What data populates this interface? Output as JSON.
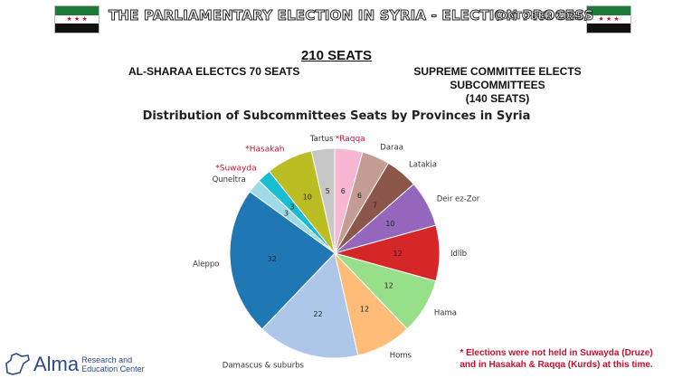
{
  "header": {
    "title": "THE PARLIAMENTARY ELECTION IN SYRIA - ELECTION PROCESS",
    "date": "(OCTOBER 2025)"
  },
  "flag": {
    "stars": "★ ★ ★"
  },
  "summary": {
    "total_seats": "210 SEATS",
    "left_note": "AL-SHARAA ELECTCS 70 SEATS",
    "right_note_line1": "SUPREME COMMITTEE ELECTS SUBCOMMITTEES",
    "right_note_line2": "(140 SEATS)"
  },
  "chart_data": {
    "type": "pie",
    "title": "Distribution of Subcommittees Seats by Provinces in Syria",
    "start": "Raqqa at top (clockwise from 12 o'clock)",
    "slices": [
      {
        "label": "Raqqa",
        "value": 6,
        "color": "#f7b6d2",
        "starred": true
      },
      {
        "label": "Daraa",
        "value": 6,
        "color": "#c49c94"
      },
      {
        "label": "Latakia",
        "value": 7,
        "color": "#8c564b"
      },
      {
        "label": "Deir ez-Zor",
        "value": 10,
        "color": "#9467bd"
      },
      {
        "label": "Idlib",
        "value": 12,
        "color": "#d62728"
      },
      {
        "label": "Hama",
        "value": 12,
        "color": "#98df8a"
      },
      {
        "label": "Homs",
        "value": 12,
        "color": "#ffbb78"
      },
      {
        "label": "Damascus & suburbs",
        "value": 22,
        "color": "#aec7e8"
      },
      {
        "label": "Aleppo",
        "value": 32,
        "color": "#1f77b4"
      },
      {
        "label": "Quneitra",
        "value": 3,
        "color": "#9edae5"
      },
      {
        "label": "Suwayda",
        "value": 3,
        "color": "#17becf",
        "starred": true
      },
      {
        "label": "Hasakah",
        "value": 10,
        "color": "#bcbd22",
        "starred": true
      },
      {
        "label": "Tartus",
        "value": 5,
        "color": "#c7c7c7"
      }
    ],
    "star_glyph": "*",
    "starred_label_color": "#c8102e"
  },
  "footnote": {
    "line1": "* Elections were not held in Suwayda (Druze)",
    "line2": "and in Hasakah & Raqqa (Kurds) at this time."
  },
  "logo": {
    "name": "Alma",
    "sub_line1": "Research and",
    "sub_line2": "Education Center",
    "icon": "syria-map-outline-icon"
  }
}
